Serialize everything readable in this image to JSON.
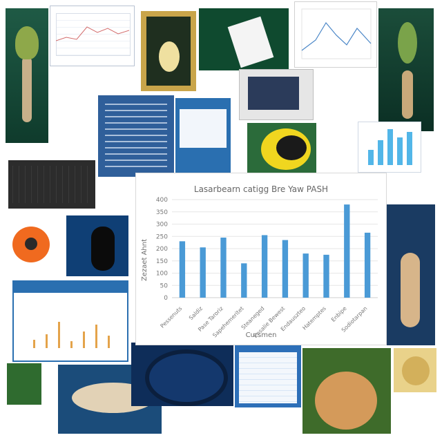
{
  "collage": {
    "tiles": [
      {
        "name": "tile-plant-specimen-left",
        "tone": "#1f5a45"
      },
      {
        "name": "tile-small-chart-top",
        "tone": "#dfe7f2"
      },
      {
        "name": "tile-yellow-frame-fruit",
        "tone": "#c9a54a"
      },
      {
        "name": "tile-green-paper-sheet",
        "tone": "#0f4a2f"
      },
      {
        "name": "tile-line-chart-top-right",
        "tone": "#f7f7f7"
      },
      {
        "name": "tile-plant-specimen-right",
        "tone": "#1b4d3a"
      },
      {
        "name": "tile-blue-document-left",
        "tone": "#2f5f9a"
      },
      {
        "name": "tile-blue-document-center",
        "tone": "#2a6fb0"
      },
      {
        "name": "tile-monitor-window",
        "tone": "#e6e6e6"
      },
      {
        "name": "tile-yellow-bird",
        "tone": "#f0d61f"
      },
      {
        "name": "tile-small-bar-chart",
        "tone": "#e8f4ff"
      },
      {
        "name": "tile-dark-keyboard-screen",
        "tone": "#2c2c2c"
      },
      {
        "name": "tile-orange-cell",
        "tone": "#f06a1f"
      },
      {
        "name": "tile-blue-capsule",
        "tone": "#0f3f75"
      },
      {
        "name": "tile-left-mid-bar-chart",
        "tone": "#ffffff"
      },
      {
        "name": "tile-blue-specimen-right",
        "tone": "#1a3b62"
      },
      {
        "name": "tile-leaf-bottom-left",
        "tone": "#2f6b2f"
      },
      {
        "name": "tile-fish-bottom",
        "tone": "#1b4c7a"
      },
      {
        "name": "tile-dark-cross-section",
        "tone": "#0e2d59"
      },
      {
        "name": "tile-blue-spreadsheet",
        "tone": "#2d6fb8"
      },
      {
        "name": "tile-potato-bottom",
        "tone": "#3e6b2a"
      },
      {
        "name": "tile-small-potato",
        "tone": "#e9d28a"
      }
    ]
  },
  "main_chart": {
    "title": "Lasarbearn catigg Bre Yaw PASH",
    "xlabel": "Cursmen",
    "ylabel": "Zezaet Ahnt",
    "bar_color": "#4a9ad6"
  },
  "chart_data": {
    "type": "bar",
    "title": "Lasarbearn catigg Bre Yaw PASH",
    "xlabel": "Cursmen",
    "ylabel": "Zezaet Ahnt",
    "categories": [
      "Pessenuts",
      "Saldiz",
      "Pase Taroriz",
      "Sapehemeritet",
      "Steaneged",
      "Ensalie Bewest",
      "Endauszteo",
      "Hatemptes",
      "Enbipe",
      "Sodiotarpan"
    ],
    "values": [
      230,
      205,
      245,
      140,
      255,
      235,
      180,
      175,
      380,
      265
    ],
    "ylim": [
      0,
      400
    ],
    "yticks": [
      0,
      50,
      100,
      150,
      200,
      250,
      300,
      350,
      400
    ],
    "ytick_labels": [
      "0",
      "50",
      "100",
      "150",
      "200",
      "250",
      "300",
      "350",
      "400"
    ],
    "grid": true
  }
}
